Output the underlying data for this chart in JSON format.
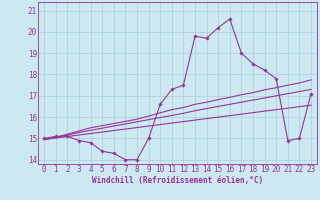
{
  "xlabel": "Windchill (Refroidissement éolien,°C)",
  "x_values": [
    0,
    1,
    2,
    3,
    4,
    5,
    6,
    7,
    8,
    9,
    10,
    11,
    12,
    13,
    14,
    15,
    16,
    17,
    18,
    19,
    20,
    21,
    22,
    23
  ],
  "y_main": [
    15.0,
    15.1,
    15.1,
    14.9,
    14.8,
    14.4,
    14.3,
    14.0,
    14.0,
    15.0,
    16.6,
    17.3,
    17.5,
    19.8,
    19.7,
    20.2,
    20.6,
    19.0,
    18.5,
    18.2,
    17.8,
    14.9,
    15.0,
    17.1
  ],
  "y_reg1": [
    14.95,
    15.05,
    15.2,
    15.35,
    15.5,
    15.6,
    15.7,
    15.8,
    15.9,
    16.05,
    16.2,
    16.35,
    16.45,
    16.6,
    16.7,
    16.82,
    16.93,
    17.05,
    17.15,
    17.28,
    17.38,
    17.5,
    17.6,
    17.75
  ],
  "y_reg2": [
    14.95,
    15.05,
    15.15,
    15.28,
    15.38,
    15.48,
    15.58,
    15.68,
    15.78,
    15.88,
    15.98,
    16.08,
    16.18,
    16.3,
    16.4,
    16.5,
    16.6,
    16.7,
    16.8,
    16.9,
    17.0,
    17.1,
    17.2,
    17.3
  ],
  "y_reg3": [
    14.95,
    15.02,
    15.09,
    15.16,
    15.23,
    15.3,
    15.37,
    15.44,
    15.51,
    15.58,
    15.65,
    15.72,
    15.79,
    15.86,
    15.93,
    16.0,
    16.07,
    16.14,
    16.21,
    16.28,
    16.35,
    16.42,
    16.49,
    16.56
  ],
  "line_color": "#993399",
  "bg_color": "#cce8f0",
  "grid_color": "#aaccda",
  "ylim": [
    13.8,
    21.4
  ],
  "xlim": [
    -0.5,
    23.5
  ],
  "yticks": [
    14,
    15,
    16,
    17,
    18,
    19,
    20,
    21
  ],
  "xticks": [
    0,
    1,
    2,
    3,
    4,
    5,
    6,
    7,
    8,
    9,
    10,
    11,
    12,
    13,
    14,
    15,
    16,
    17,
    18,
    19,
    20,
    21,
    22,
    23
  ]
}
